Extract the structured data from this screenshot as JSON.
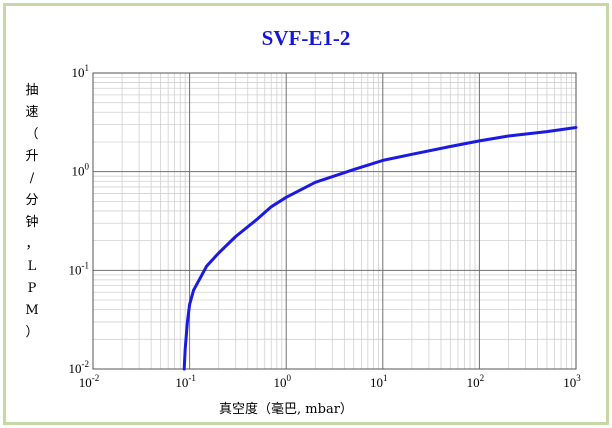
{
  "chart_data": {
    "type": "line",
    "title": "SVF-E1-2",
    "xlabel": "真空度（毫巴, mbar）",
    "ylabel": "抽速（升/分钟，LPM）",
    "xscale": "log",
    "yscale": "log",
    "xlim": [
      0.01,
      1000
    ],
    "ylim": [
      0.01,
      10
    ],
    "grid": true,
    "x_ticks": [
      {
        "base": "10",
        "exp": "-2"
      },
      {
        "base": "10",
        "exp": "-1"
      },
      {
        "base": "10",
        "exp": "0"
      },
      {
        "base": "10",
        "exp": "1"
      },
      {
        "base": "10",
        "exp": "2"
      },
      {
        "base": "10",
        "exp": "3"
      }
    ],
    "y_ticks": [
      {
        "base": "10",
        "exp": "-2"
      },
      {
        "base": "10",
        "exp": "-1"
      },
      {
        "base": "10",
        "exp": "0"
      },
      {
        "base": "10",
        "exp": "1"
      }
    ],
    "series": [
      {
        "color": "#1a1ae0",
        "x": [
          0.088,
          0.09,
          0.095,
          0.1,
          0.11,
          0.13,
          0.15,
          0.2,
          0.3,
          0.5,
          0.7,
          1.0,
          2.0,
          5.0,
          10,
          20,
          50,
          100,
          200,
          500,
          1000
        ],
        "y": [
          0.01,
          0.016,
          0.03,
          0.045,
          0.063,
          0.085,
          0.11,
          0.15,
          0.22,
          0.33,
          0.44,
          0.55,
          0.78,
          1.05,
          1.3,
          1.5,
          1.8,
          2.05,
          2.3,
          2.55,
          2.8
        ]
      }
    ]
  },
  "colors": {
    "frame_border": "#c5d9a6",
    "title": "#1515e0",
    "line": "#1a1ae0"
  }
}
